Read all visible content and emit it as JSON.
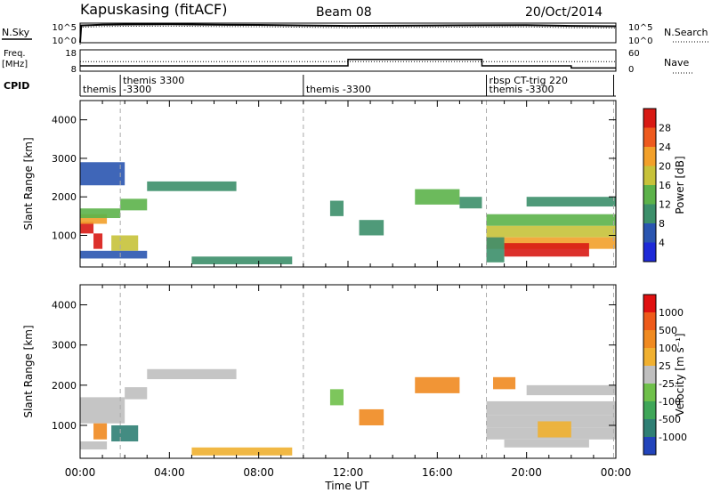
{
  "header": {
    "title": "Kapuskasing (fitACF)",
    "beam": "Beam 08",
    "date": "20/Oct/2014"
  },
  "chart_data": [
    {
      "type": "line",
      "panel": "noise",
      "left_label": "N.Sky",
      "right_label": "N.Search",
      "left_ticks": [
        "10^5",
        "10^0"
      ],
      "right_ticks": [
        "10^5",
        "10^0"
      ],
      "x_hours": [
        0.0,
        0.05,
        0.5,
        1.0,
        2.0,
        4.0,
        6.0,
        8.0,
        10.0,
        12.0,
        14.0,
        16.0,
        18.0,
        20.0,
        22.0,
        24.0
      ],
      "y_log": [
        0.0,
        4.4,
        4.5,
        4.6,
        4.65,
        4.7,
        4.6,
        4.55,
        4.4,
        4.3,
        4.35,
        4.4,
        4.45,
        4.5,
        4.3,
        4.2
      ]
    },
    {
      "type": "line",
      "panel": "frequency",
      "left_label": "Freq.",
      "left_unit": "[MHz]",
      "right_label": "Nave",
      "left_ticks": [
        "18",
        "8"
      ],
      "right_ticks": [
        "60",
        "0"
      ],
      "freq_segments": [
        {
          "start": 0.0,
          "end": 12.0,
          "value": 10.5
        },
        {
          "start": 12.0,
          "end": 18.0,
          "value": 13.5
        },
        {
          "start": 18.0,
          "end": 22.0,
          "value": 10.5
        },
        {
          "start": 22.0,
          "end": 24.0,
          "value": 9.5
        }
      ],
      "nave_level": 12.5
    },
    {
      "type": "table",
      "panel": "cpid",
      "label": "CPID",
      "segments": [
        {
          "start": 0.0,
          "lines": [
            "themis"
          ]
        },
        {
          "start": 1.8,
          "lines": [
            "themis 3300",
            "-3300"
          ]
        },
        {
          "start": 10.0,
          "lines": [
            "themis -3300"
          ]
        },
        {
          "start": 18.2,
          "lines": [
            "rbsp CT-trig 220",
            "themis -3300"
          ]
        },
        {
          "start": 23.9,
          "lines": [
            ""
          ]
        }
      ]
    },
    {
      "type": "heatmap",
      "panel": "power",
      "ylabel": "Slant Range [km]",
      "yticks": [
        "1000",
        "2000",
        "3000",
        "4000"
      ],
      "ylim": [
        180,
        4500
      ],
      "colorbar_label": "Power [dB]",
      "colorbar_ticks": [
        "4",
        "8",
        "12",
        "16",
        "20",
        "24",
        "28"
      ],
      "colorbar_colors": [
        "#1e2ad8",
        "#2a55b0",
        "#3c8f6a",
        "#5cb24a",
        "#c7c23a",
        "#f2a02a",
        "#ee5a1e",
        "#d81a14"
      ],
      "regions": [
        {
          "t0": 0.0,
          "t1": 0.6,
          "r0": 1050,
          "r1": 1350,
          "c": 7
        },
        {
          "t0": 0.0,
          "t1": 1.2,
          "r0": 1300,
          "r1": 1550,
          "c": 5
        },
        {
          "t0": 0.6,
          "t1": 1.0,
          "r0": 650,
          "r1": 1050,
          "c": 7
        },
        {
          "t0": 0.0,
          "t1": 1.8,
          "r0": 1450,
          "r1": 1700,
          "c": 3
        },
        {
          "t0": 1.4,
          "t1": 2.6,
          "r0": 600,
          "r1": 1000,
          "c": 4
        },
        {
          "t0": 1.8,
          "t1": 3.0,
          "r0": 1650,
          "r1": 1950,
          "c": 3
        },
        {
          "t0": 3.0,
          "t1": 7.0,
          "r0": 2150,
          "r1": 2400,
          "c": 2
        },
        {
          "t0": 0.0,
          "t1": 2.0,
          "r0": 2300,
          "r1": 2900,
          "c": 1
        },
        {
          "t0": 0.0,
          "t1": 3.0,
          "r0": 400,
          "r1": 600,
          "c": 1
        },
        {
          "t0": 5.0,
          "t1": 9.5,
          "r0": 250,
          "r1": 450,
          "c": 2
        },
        {
          "t0": 11.2,
          "t1": 11.8,
          "r0": 1500,
          "r1": 1900,
          "c": 2
        },
        {
          "t0": 12.5,
          "t1": 13.6,
          "r0": 1000,
          "r1": 1400,
          "c": 2
        },
        {
          "t0": 15.0,
          "t1": 17.0,
          "r0": 1800,
          "r1": 2200,
          "c": 3
        },
        {
          "t0": 17.0,
          "t1": 18.0,
          "r0": 1700,
          "r1": 2000,
          "c": 2
        },
        {
          "t0": 18.2,
          "t1": 24.0,
          "r0": 950,
          "r1": 1250,
          "c": 4
        },
        {
          "t0": 18.2,
          "t1": 24.0,
          "r0": 650,
          "r1": 950,
          "c": 5
        },
        {
          "t0": 19.0,
          "t1": 22.8,
          "r0": 450,
          "r1": 800,
          "c": 7
        },
        {
          "t0": 18.2,
          "t1": 24.0,
          "r0": 1250,
          "r1": 1550,
          "c": 3
        },
        {
          "t0": 20.0,
          "t1": 24.0,
          "r0": 1750,
          "r1": 2000,
          "c": 2
        },
        {
          "t0": 18.2,
          "t1": 19.0,
          "r0": 300,
          "r1": 950,
          "c": 2
        }
      ]
    },
    {
      "type": "heatmap",
      "panel": "velocity",
      "ylabel": "Slant Range [km]",
      "yticks": [
        "1000",
        "2000",
        "3000",
        "4000"
      ],
      "ylim": [
        180,
        4500
      ],
      "xlabel": "Time UT",
      "xticks": [
        "00:00",
        "04:00",
        "08:00",
        "12:00",
        "16:00",
        "20:00",
        "00:00"
      ],
      "colorbar_label": "Velocity [m s⁻¹]",
      "colorbar_ticks": [
        "1000",
        "500",
        "100",
        "25",
        "-25",
        "-100",
        "-500",
        "-1000"
      ],
      "colorbar_colors": [
        "#2244bb",
        "#2f7f74",
        "#3fa658",
        "#6fc04a",
        "#bfbfbf",
        "#f0b030",
        "#f08a20",
        "#ee5a1a",
        "#e01010"
      ],
      "regions": [
        {
          "t0": 0.0,
          "t1": 2.0,
          "r0": 1050,
          "r1": 1700,
          "c": 4
        },
        {
          "t0": 2.0,
          "t1": 3.0,
          "r0": 1650,
          "r1": 1950,
          "c": 4
        },
        {
          "t0": 3.0,
          "t1": 7.0,
          "r0": 2150,
          "r1": 2400,
          "c": 4
        },
        {
          "t0": 0.6,
          "t1": 1.2,
          "r0": 650,
          "r1": 1050,
          "c": 6
        },
        {
          "t0": 1.4,
          "t1": 2.6,
          "r0": 600,
          "r1": 1000,
          "c": 1
        },
        {
          "t0": 0.0,
          "t1": 1.2,
          "r0": 400,
          "r1": 600,
          "c": 4
        },
        {
          "t0": 5.0,
          "t1": 9.5,
          "r0": 250,
          "r1": 450,
          "c": 5
        },
        {
          "t0": 11.2,
          "t1": 11.8,
          "r0": 1500,
          "r1": 1900,
          "c": 3
        },
        {
          "t0": 12.5,
          "t1": 13.6,
          "r0": 1000,
          "r1": 1400,
          "c": 6
        },
        {
          "t0": 15.0,
          "t1": 17.0,
          "r0": 1800,
          "r1": 2200,
          "c": 6
        },
        {
          "t0": 18.2,
          "t1": 24.0,
          "r0": 950,
          "r1": 1250,
          "c": 4
        },
        {
          "t0": 18.2,
          "t1": 24.0,
          "r0": 650,
          "r1": 950,
          "c": 4
        },
        {
          "t0": 19.0,
          "t1": 22.8,
          "r0": 450,
          "r1": 650,
          "c": 4
        },
        {
          "t0": 18.2,
          "t1": 24.0,
          "r0": 1250,
          "r1": 1600,
          "c": 4
        },
        {
          "t0": 20.0,
          "t1": 24.0,
          "r0": 1750,
          "r1": 2000,
          "c": 4
        },
        {
          "t0": 20.5,
          "t1": 22.0,
          "r0": 700,
          "r1": 1100,
          "c": 5
        },
        {
          "t0": 18.5,
          "t1": 19.5,
          "r0": 1900,
          "r1": 2200,
          "c": 6
        }
      ]
    }
  ]
}
